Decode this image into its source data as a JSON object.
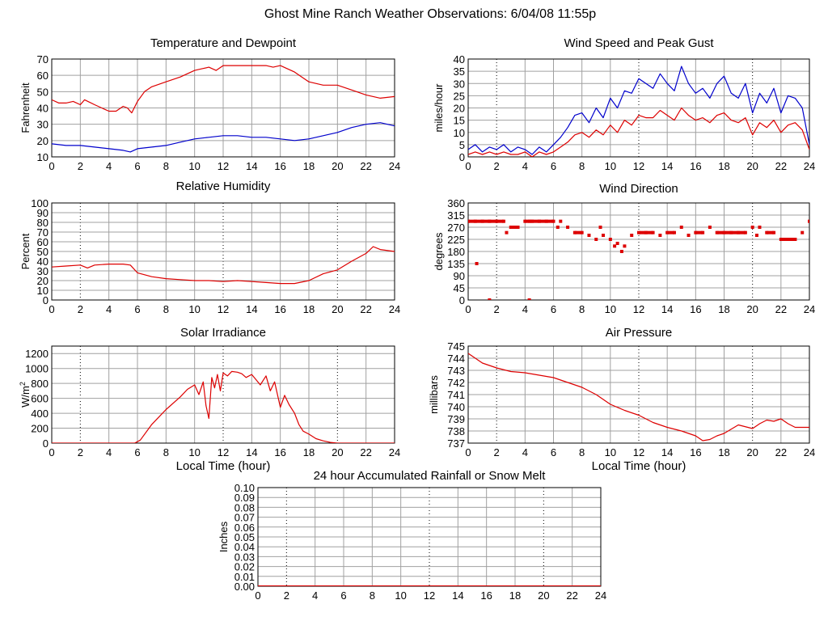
{
  "page": {
    "title": "Ghost Mine Ranch Weather Observations: 6/04/08 11:55p"
  },
  "colors": {
    "series_red": "#dd0000",
    "series_blue": "#0000cc",
    "grid": "#a0a0a0",
    "frame": "#000000"
  },
  "chart_data": [
    {
      "id": "temp",
      "type": "line",
      "title": "Temperature and Dewpoint",
      "ylabel": "Fahrenheit",
      "xlabel": "",
      "xlim": [
        0,
        24
      ],
      "ylim": [
        10,
        70
      ],
      "xticks": [
        0,
        2,
        4,
        6,
        8,
        10,
        12,
        14,
        16,
        18,
        20,
        22,
        24
      ],
      "yticks": [
        10,
        20,
        30,
        40,
        50,
        60,
        70
      ],
      "series": [
        {
          "color": "#dd0000",
          "x": [
            0,
            0.5,
            1,
            1.5,
            2,
            2.3,
            3,
            3.5,
            4,
            4.5,
            5,
            5.3,
            5.6,
            6,
            6.5,
            7,
            8,
            9,
            10,
            10.5,
            11,
            11.5,
            12,
            13,
            14,
            15,
            15.5,
            16,
            16.5,
            17,
            17.5,
            18,
            19,
            20,
            21,
            22,
            23,
            24
          ],
          "y": [
            45,
            43,
            43,
            44,
            42,
            45,
            42,
            40,
            38,
            38,
            41,
            40,
            37,
            44,
            50,
            53,
            56,
            59,
            63,
            64,
            65,
            63,
            66,
            66,
            66,
            66,
            65,
            66,
            64,
            62,
            59,
            56,
            54,
            54,
            51,
            48,
            46,
            47
          ]
        },
        {
          "color": "#0000cc",
          "x": [
            0,
            1,
            2,
            3,
            4,
            5,
            5.5,
            6,
            7,
            8,
            9,
            10,
            11,
            12,
            13,
            14,
            15,
            16,
            17,
            18,
            19,
            20,
            21,
            22,
            23,
            24
          ],
          "y": [
            18,
            17,
            17,
            16,
            15,
            14,
            13,
            15,
            16,
            17,
            19,
            21,
            22,
            23,
            23,
            22,
            22,
            21,
            20,
            21,
            23,
            25,
            28,
            30,
            31,
            29
          ]
        }
      ]
    },
    {
      "id": "wind",
      "type": "line",
      "title": "Wind Speed and Peak Gust",
      "ylabel": "miles/hour",
      "xlabel": "",
      "xlim": [
        0,
        24
      ],
      "ylim": [
        0,
        40
      ],
      "xticks": [
        0,
        2,
        4,
        6,
        8,
        10,
        12,
        14,
        16,
        18,
        20,
        22,
        24
      ],
      "yticks": [
        0,
        5,
        10,
        15,
        20,
        25,
        30,
        35,
        40
      ],
      "series": [
        {
          "color": "#0000cc",
          "x": [
            0,
            0.5,
            1,
            1.5,
            2,
            2.5,
            3,
            3.5,
            4,
            4.5,
            5,
            5.5,
            6,
            6.5,
            7,
            7.5,
            8,
            8.5,
            9,
            9.5,
            10,
            10.5,
            11,
            11.5,
            12,
            12.5,
            13,
            13.5,
            14,
            14.5,
            15,
            15.5,
            16,
            16.5,
            17,
            17.5,
            18,
            18.5,
            19,
            19.5,
            20,
            20.5,
            21,
            21.5,
            22,
            22.5,
            23,
            23.5,
            24
          ],
          "y": [
            3,
            5,
            2,
            4,
            3,
            5,
            2,
            4,
            3,
            1,
            4,
            2,
            5,
            8,
            12,
            17,
            18,
            14,
            20,
            16,
            24,
            20,
            27,
            26,
            32,
            30,
            28,
            34,
            30,
            27,
            37,
            30,
            26,
            28,
            24,
            30,
            33,
            26,
            24,
            30,
            18,
            26,
            22,
            28,
            18,
            25,
            24,
            20,
            5
          ]
        },
        {
          "color": "#dd0000",
          "x": [
            0,
            0.5,
            1,
            1.5,
            2,
            2.5,
            3,
            3.5,
            4,
            4.5,
            5,
            5.5,
            6,
            6.5,
            7,
            7.5,
            8,
            8.5,
            9,
            9.5,
            10,
            10.5,
            11,
            11.5,
            12,
            12.5,
            13,
            13.5,
            14,
            14.5,
            15,
            15.5,
            16,
            16.5,
            17,
            17.5,
            18,
            18.5,
            19,
            19.5,
            20,
            20.5,
            21,
            21.5,
            22,
            22.5,
            23,
            23.5,
            24
          ],
          "y": [
            1,
            2,
            1,
            2,
            1,
            2,
            1,
            1,
            2,
            0,
            2,
            1,
            2,
            4,
            6,
            9,
            10,
            8,
            11,
            9,
            13,
            10,
            15,
            13,
            17,
            16,
            16,
            19,
            17,
            15,
            20,
            17,
            15,
            16,
            14,
            17,
            18,
            15,
            14,
            16,
            9,
            14,
            12,
            15,
            10,
            13,
            14,
            11,
            3
          ]
        }
      ]
    },
    {
      "id": "humidity",
      "type": "line",
      "title": "Relative Humidity",
      "ylabel": "Percent",
      "xlabel": "",
      "xlim": [
        0,
        24
      ],
      "ylim": [
        0,
        100
      ],
      "xticks": [
        0,
        2,
        4,
        6,
        8,
        10,
        12,
        14,
        16,
        18,
        20,
        22,
        24
      ],
      "yticks": [
        0,
        10,
        20,
        30,
        40,
        50,
        60,
        70,
        80,
        90,
        100
      ],
      "series": [
        {
          "color": "#dd0000",
          "x": [
            0,
            1,
            2,
            2.5,
            3,
            4,
            5,
            5.5,
            6,
            7,
            8,
            9,
            10,
            11,
            12,
            13,
            14,
            15,
            16,
            17,
            18,
            19,
            20,
            21,
            22,
            22.5,
            23,
            24
          ],
          "y": [
            34,
            35,
            36,
            33,
            36,
            37,
            37,
            36,
            28,
            24,
            22,
            21,
            20,
            20,
            19,
            20,
            19,
            18,
            17,
            17,
            20,
            27,
            31,
            40,
            48,
            55,
            52,
            50
          ]
        }
      ]
    },
    {
      "id": "winddir",
      "type": "scatter",
      "title": "Wind Direction",
      "ylabel": "degrees",
      "xlabel": "",
      "xlim": [
        0,
        24
      ],
      "ylim": [
        0,
        360
      ],
      "xticks": [
        0,
        2,
        4,
        6,
        8,
        10,
        12,
        14,
        16,
        18,
        20,
        22,
        24
      ],
      "yticks": [
        0,
        45,
        90,
        135,
        180,
        225,
        270,
        315,
        360
      ],
      "series": [
        {
          "color": "#dd0000",
          "x": [
            0,
            0.5,
            1,
            1.5,
            2,
            2.5,
            2.7,
            3,
            3.5,
            4,
            4.3,
            4.5,
            5,
            5.5,
            6,
            6.3,
            6.5,
            7,
            7.5,
            8,
            8.5,
            9,
            9.3,
            9.5,
            10,
            10.3,
            10.5,
            10.8,
            11,
            11.5,
            12,
            12.5,
            13,
            13.5,
            14,
            14.5,
            15,
            15.5,
            16,
            16.5,
            17,
            17.5,
            18,
            18.5,
            19,
            19.5,
            20,
            20.3,
            20.5,
            21,
            21.5,
            22,
            22.5,
            23,
            23.5,
            24,
            0.6,
            1.5,
            4.3
          ],
          "y": [
            292,
            292,
            292,
            292,
            292,
            292,
            250,
            270,
            270,
            292,
            292,
            292,
            292,
            292,
            292,
            270,
            292,
            270,
            250,
            250,
            240,
            225,
            270,
            240,
            225,
            200,
            210,
            180,
            200,
            240,
            250,
            250,
            250,
            240,
            250,
            250,
            270,
            240,
            250,
            250,
            270,
            250,
            250,
            250,
            250,
            250,
            270,
            240,
            270,
            250,
            250,
            225,
            225,
            225,
            250,
            292,
            135,
            0,
            0
          ]
        }
      ]
    },
    {
      "id": "solar",
      "type": "line",
      "title": "Solar Irradiance",
      "ylabel": "W/m",
      "ylabel_sup": "2",
      "xlabel": "Local Time (hour)",
      "xlim": [
        0,
        24
      ],
      "ylim": [
        0,
        1300
      ],
      "xticks": [
        0,
        2,
        4,
        6,
        8,
        10,
        12,
        14,
        16,
        18,
        20,
        22,
        24
      ],
      "yticks": [
        0,
        200,
        400,
        600,
        800,
        1000,
        1200
      ],
      "series": [
        {
          "color": "#dd0000",
          "x": [
            0,
            1,
            2,
            3,
            4,
            5,
            5.8,
            6.2,
            7,
            8,
            9,
            9.5,
            10,
            10.3,
            10.6,
            10.8,
            11,
            11.2,
            11.4,
            11.6,
            11.8,
            12,
            12.3,
            12.6,
            13,
            13.3,
            13.6,
            14,
            14.3,
            14.6,
            15,
            15.3,
            15.6,
            16,
            16.3,
            16.6,
            17,
            17.3,
            17.6,
            18,
            18.5,
            19,
            19.5,
            20,
            21,
            22,
            23,
            24
          ],
          "y": [
            0,
            0,
            0,
            0,
            0,
            0,
            0,
            40,
            250,
            450,
            620,
            720,
            780,
            650,
            820,
            500,
            330,
            880,
            740,
            920,
            700,
            940,
            900,
            960,
            950,
            930,
            880,
            920,
            850,
            780,
            900,
            700,
            820,
            480,
            640,
            520,
            400,
            250,
            160,
            120,
            60,
            30,
            10,
            0,
            0,
            0,
            0,
            0
          ]
        }
      ]
    },
    {
      "id": "pressure",
      "type": "line",
      "title": "Air Pressure",
      "ylabel": "millibars",
      "xlabel": "Local Time (hour)",
      "xlim": [
        0,
        24
      ],
      "ylim": [
        737,
        745
      ],
      "xticks": [
        0,
        2,
        4,
        6,
        8,
        10,
        12,
        14,
        16,
        18,
        20,
        22,
        24
      ],
      "yticks": [
        737,
        738,
        739,
        740,
        741,
        742,
        743,
        744,
        745
      ],
      "series": [
        {
          "color": "#dd0000",
          "x": [
            0,
            0.5,
            1,
            2,
            3,
            4,
            5,
            6,
            7,
            8,
            9,
            10,
            11,
            12,
            13,
            14,
            15,
            16,
            16.5,
            17,
            17.5,
            18,
            19,
            20,
            20.5,
            21,
            21.5,
            22,
            22.5,
            23,
            24
          ],
          "y": [
            744.4,
            744.0,
            743.6,
            743.2,
            742.9,
            742.8,
            742.6,
            742.4,
            742.0,
            741.6,
            741.0,
            740.2,
            739.7,
            739.3,
            738.7,
            738.3,
            738.0,
            737.6,
            737.2,
            737.3,
            737.6,
            737.8,
            738.5,
            738.2,
            738.6,
            738.9,
            738.8,
            739.0,
            738.6,
            738.3,
            738.3
          ]
        }
      ]
    },
    {
      "id": "rain",
      "type": "line",
      "title": "24 hour Accumulated Rainfall or Snow Melt",
      "ylabel": "Inches",
      "xlabel": "",
      "xlim": [
        0,
        24
      ],
      "ylim": [
        0,
        0.1
      ],
      "xticks": [
        0,
        2,
        4,
        6,
        8,
        10,
        12,
        14,
        16,
        18,
        20,
        22,
        24
      ],
      "yticks": [
        "0.00",
        "0.01",
        "0.02",
        "0.03",
        "0.04",
        "0.05",
        "0.06",
        "0.07",
        "0.08",
        "0.09",
        "0.10"
      ],
      "series": [
        {
          "color": "#dd0000",
          "x": [
            0,
            24
          ],
          "y": [
            0,
            0
          ]
        }
      ]
    }
  ]
}
